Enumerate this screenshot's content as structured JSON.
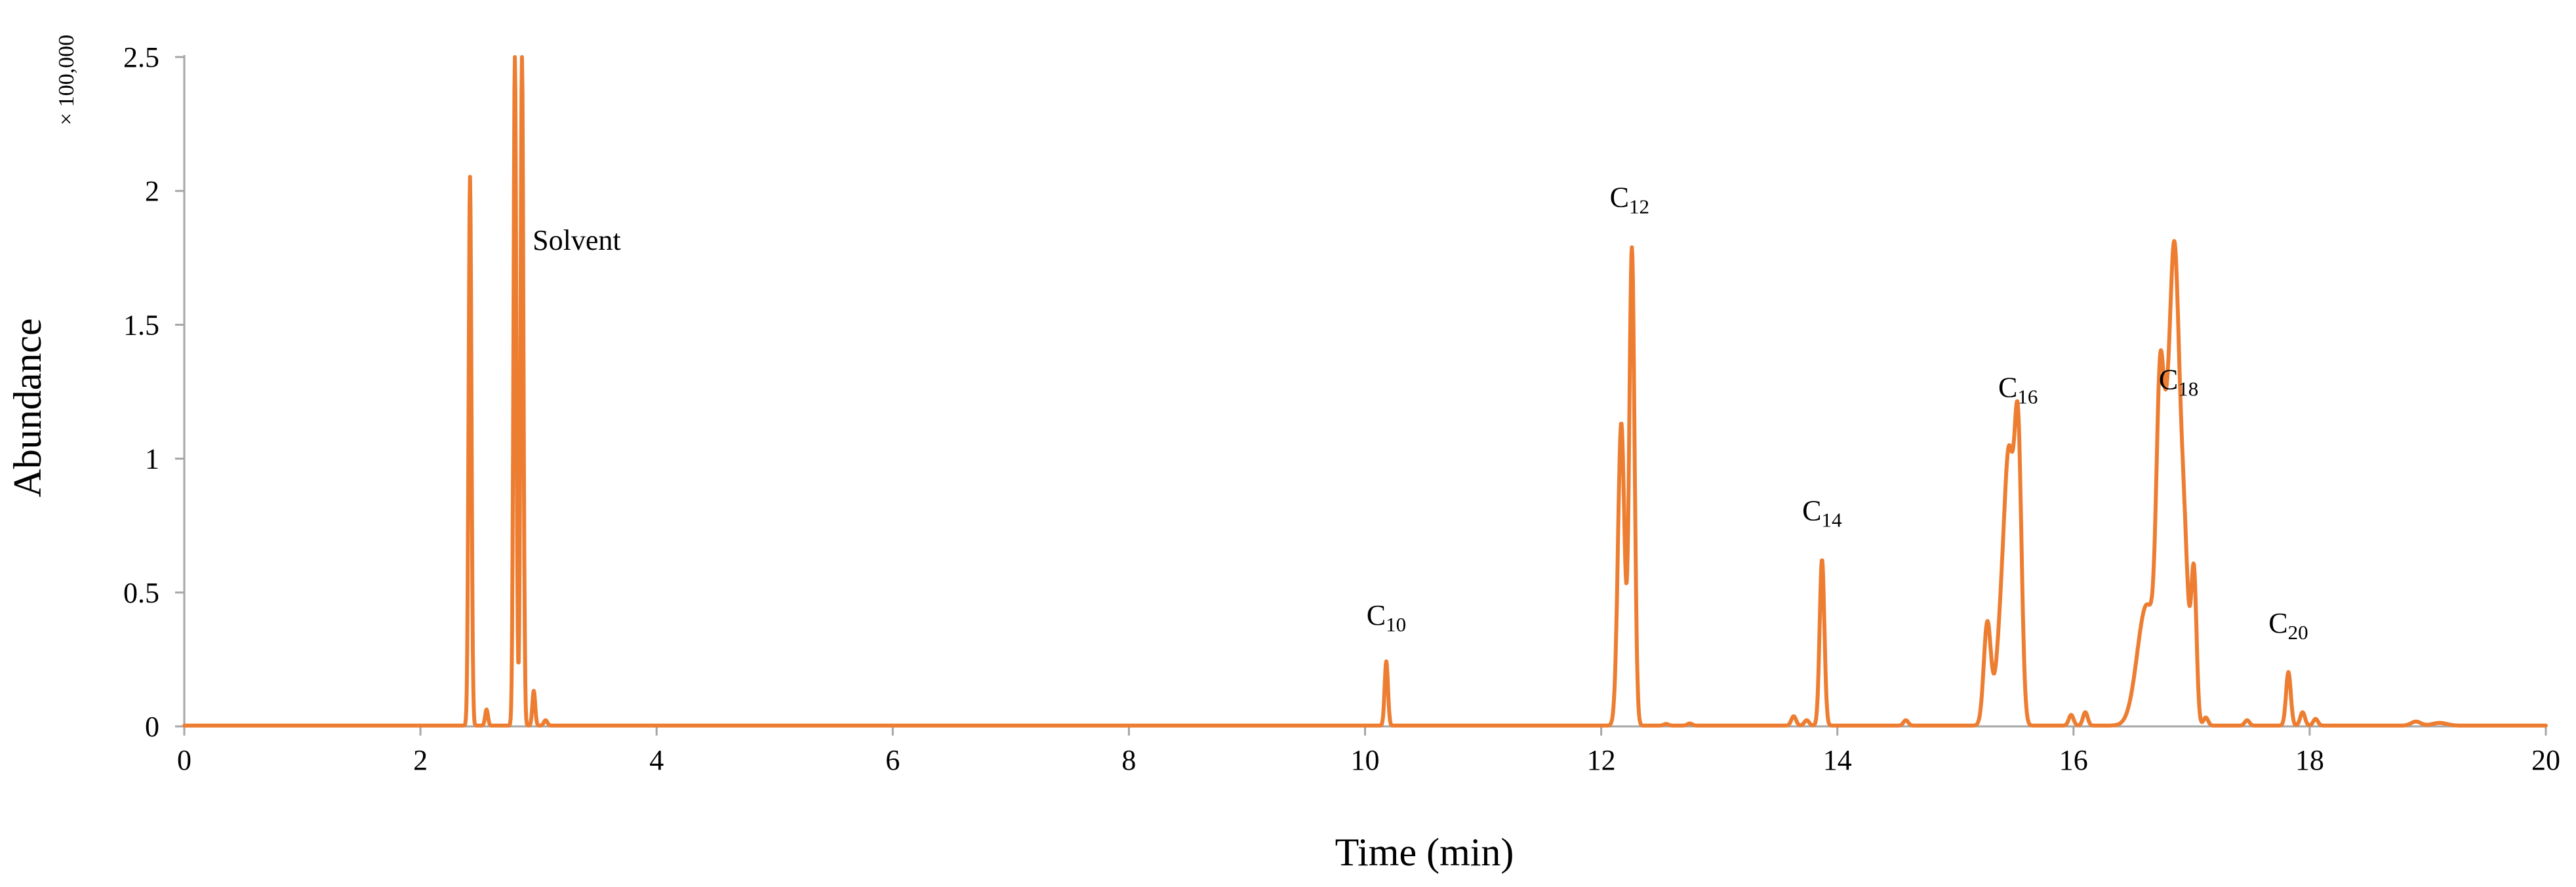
{
  "chart_data": {
    "type": "line",
    "title": "",
    "xlabel": "Time (min)",
    "ylabel": "Abundance",
    "y_unit_label": "× 100,000",
    "xlim": [
      0,
      20
    ],
    "ylim": [
      0,
      2.5
    ],
    "xticks": [
      0,
      2,
      4,
      6,
      8,
      10,
      12,
      14,
      16,
      18,
      20
    ],
    "xtick_labels": [
      "0",
      "2",
      "4",
      "6",
      "8",
      "10",
      "12",
      "14",
      "16",
      "18",
      "20"
    ],
    "yticks": [
      0,
      0.5,
      1,
      1.5,
      2,
      2.5
    ],
    "ytick_labels": [
      "0",
      "0.5",
      "1",
      "1.5",
      "2",
      "2.5"
    ],
    "grid": false,
    "legend": "none",
    "series": [
      {
        "color": "#ED7D31",
        "baseline": 0.003,
        "peaks": [
          {
            "x": 2.42,
            "y": 2.05,
            "w": 0.012
          },
          {
            "x": 2.56,
            "y": 0.06,
            "w": 0.012
          },
          {
            "x": 2.8,
            "y": 2.5,
            "w": 0.012,
            "clipped": true
          },
          {
            "x": 2.86,
            "y": 2.5,
            "w": 0.012,
            "clipped": true
          },
          {
            "x": 2.96,
            "y": 0.13,
            "w": 0.012
          },
          {
            "x": 3.06,
            "y": 0.02,
            "w": 0.015
          },
          {
            "x": 10.18,
            "y": 0.24,
            "w": 0.014
          },
          {
            "x": 12.17,
            "y": 1.13,
            "w": 0.028
          },
          {
            "x": 12.26,
            "y": 1.78,
            "w": 0.022
          },
          {
            "x": 12.55,
            "y": 0.006,
            "w": 0.02
          },
          {
            "x": 12.75,
            "y": 0.008,
            "w": 0.02
          },
          {
            "x": 13.63,
            "y": 0.035,
            "w": 0.02
          },
          {
            "x": 13.74,
            "y": 0.02,
            "w": 0.02
          },
          {
            "x": 13.87,
            "y": 0.62,
            "w": 0.02
          },
          {
            "x": 14.58,
            "y": 0.02,
            "w": 0.02
          },
          {
            "x": 15.27,
            "y": 0.38,
            "w": 0.03
          },
          {
            "x": 15.41,
            "y": 0.52,
            "w": 0.05
          },
          {
            "x": 15.46,
            "y": 0.66,
            "w": 0.035
          },
          {
            "x": 15.53,
            "y": 1.07,
            "w": 0.03
          },
          {
            "x": 15.98,
            "y": 0.04,
            "w": 0.02
          },
          {
            "x": 16.1,
            "y": 0.05,
            "w": 0.02
          },
          {
            "x": 16.62,
            "y": 0.45,
            "w": 0.08
          },
          {
            "x": 16.73,
            "y": 0.82,
            "w": 0.03
          },
          {
            "x": 16.8,
            "y": 0.98,
            "w": 0.05
          },
          {
            "x": 16.86,
            "y": 1.15,
            "w": 0.035
          },
          {
            "x": 16.93,
            "y": 0.75,
            "w": 0.04
          },
          {
            "x": 17.02,
            "y": 0.54,
            "w": 0.022
          },
          {
            "x": 17.12,
            "y": 0.03,
            "w": 0.02
          },
          {
            "x": 17.47,
            "y": 0.02,
            "w": 0.02
          },
          {
            "x": 17.82,
            "y": 0.2,
            "w": 0.02
          },
          {
            "x": 17.94,
            "y": 0.05,
            "w": 0.02
          },
          {
            "x": 18.05,
            "y": 0.025,
            "w": 0.02
          },
          {
            "x": 18.9,
            "y": 0.015,
            "w": 0.04
          },
          {
            "x": 19.1,
            "y": 0.01,
            "w": 0.06
          }
        ]
      }
    ],
    "annotations": [
      {
        "base": "Solvent",
        "sub": "",
        "x": 2.95,
        "y": 1.78,
        "anchor": "start"
      },
      {
        "base": "C",
        "sub": "10",
        "x": 10.18,
        "y": 0.38,
        "anchor": "middle"
      },
      {
        "base": "C",
        "sub": "12",
        "x": 12.24,
        "y": 1.94,
        "anchor": "middle"
      },
      {
        "base": "C",
        "sub": "14",
        "x": 13.87,
        "y": 0.77,
        "anchor": "middle"
      },
      {
        "base": "C",
        "sub": "16",
        "x": 15.53,
        "y": 1.23,
        "anchor": "middle"
      },
      {
        "base": "C",
        "sub": "18",
        "x": 16.89,
        "y": 1.26,
        "anchor": "middle"
      },
      {
        "base": "C",
        "sub": "20",
        "x": 17.82,
        "y": 0.35,
        "anchor": "middle"
      }
    ]
  }
}
